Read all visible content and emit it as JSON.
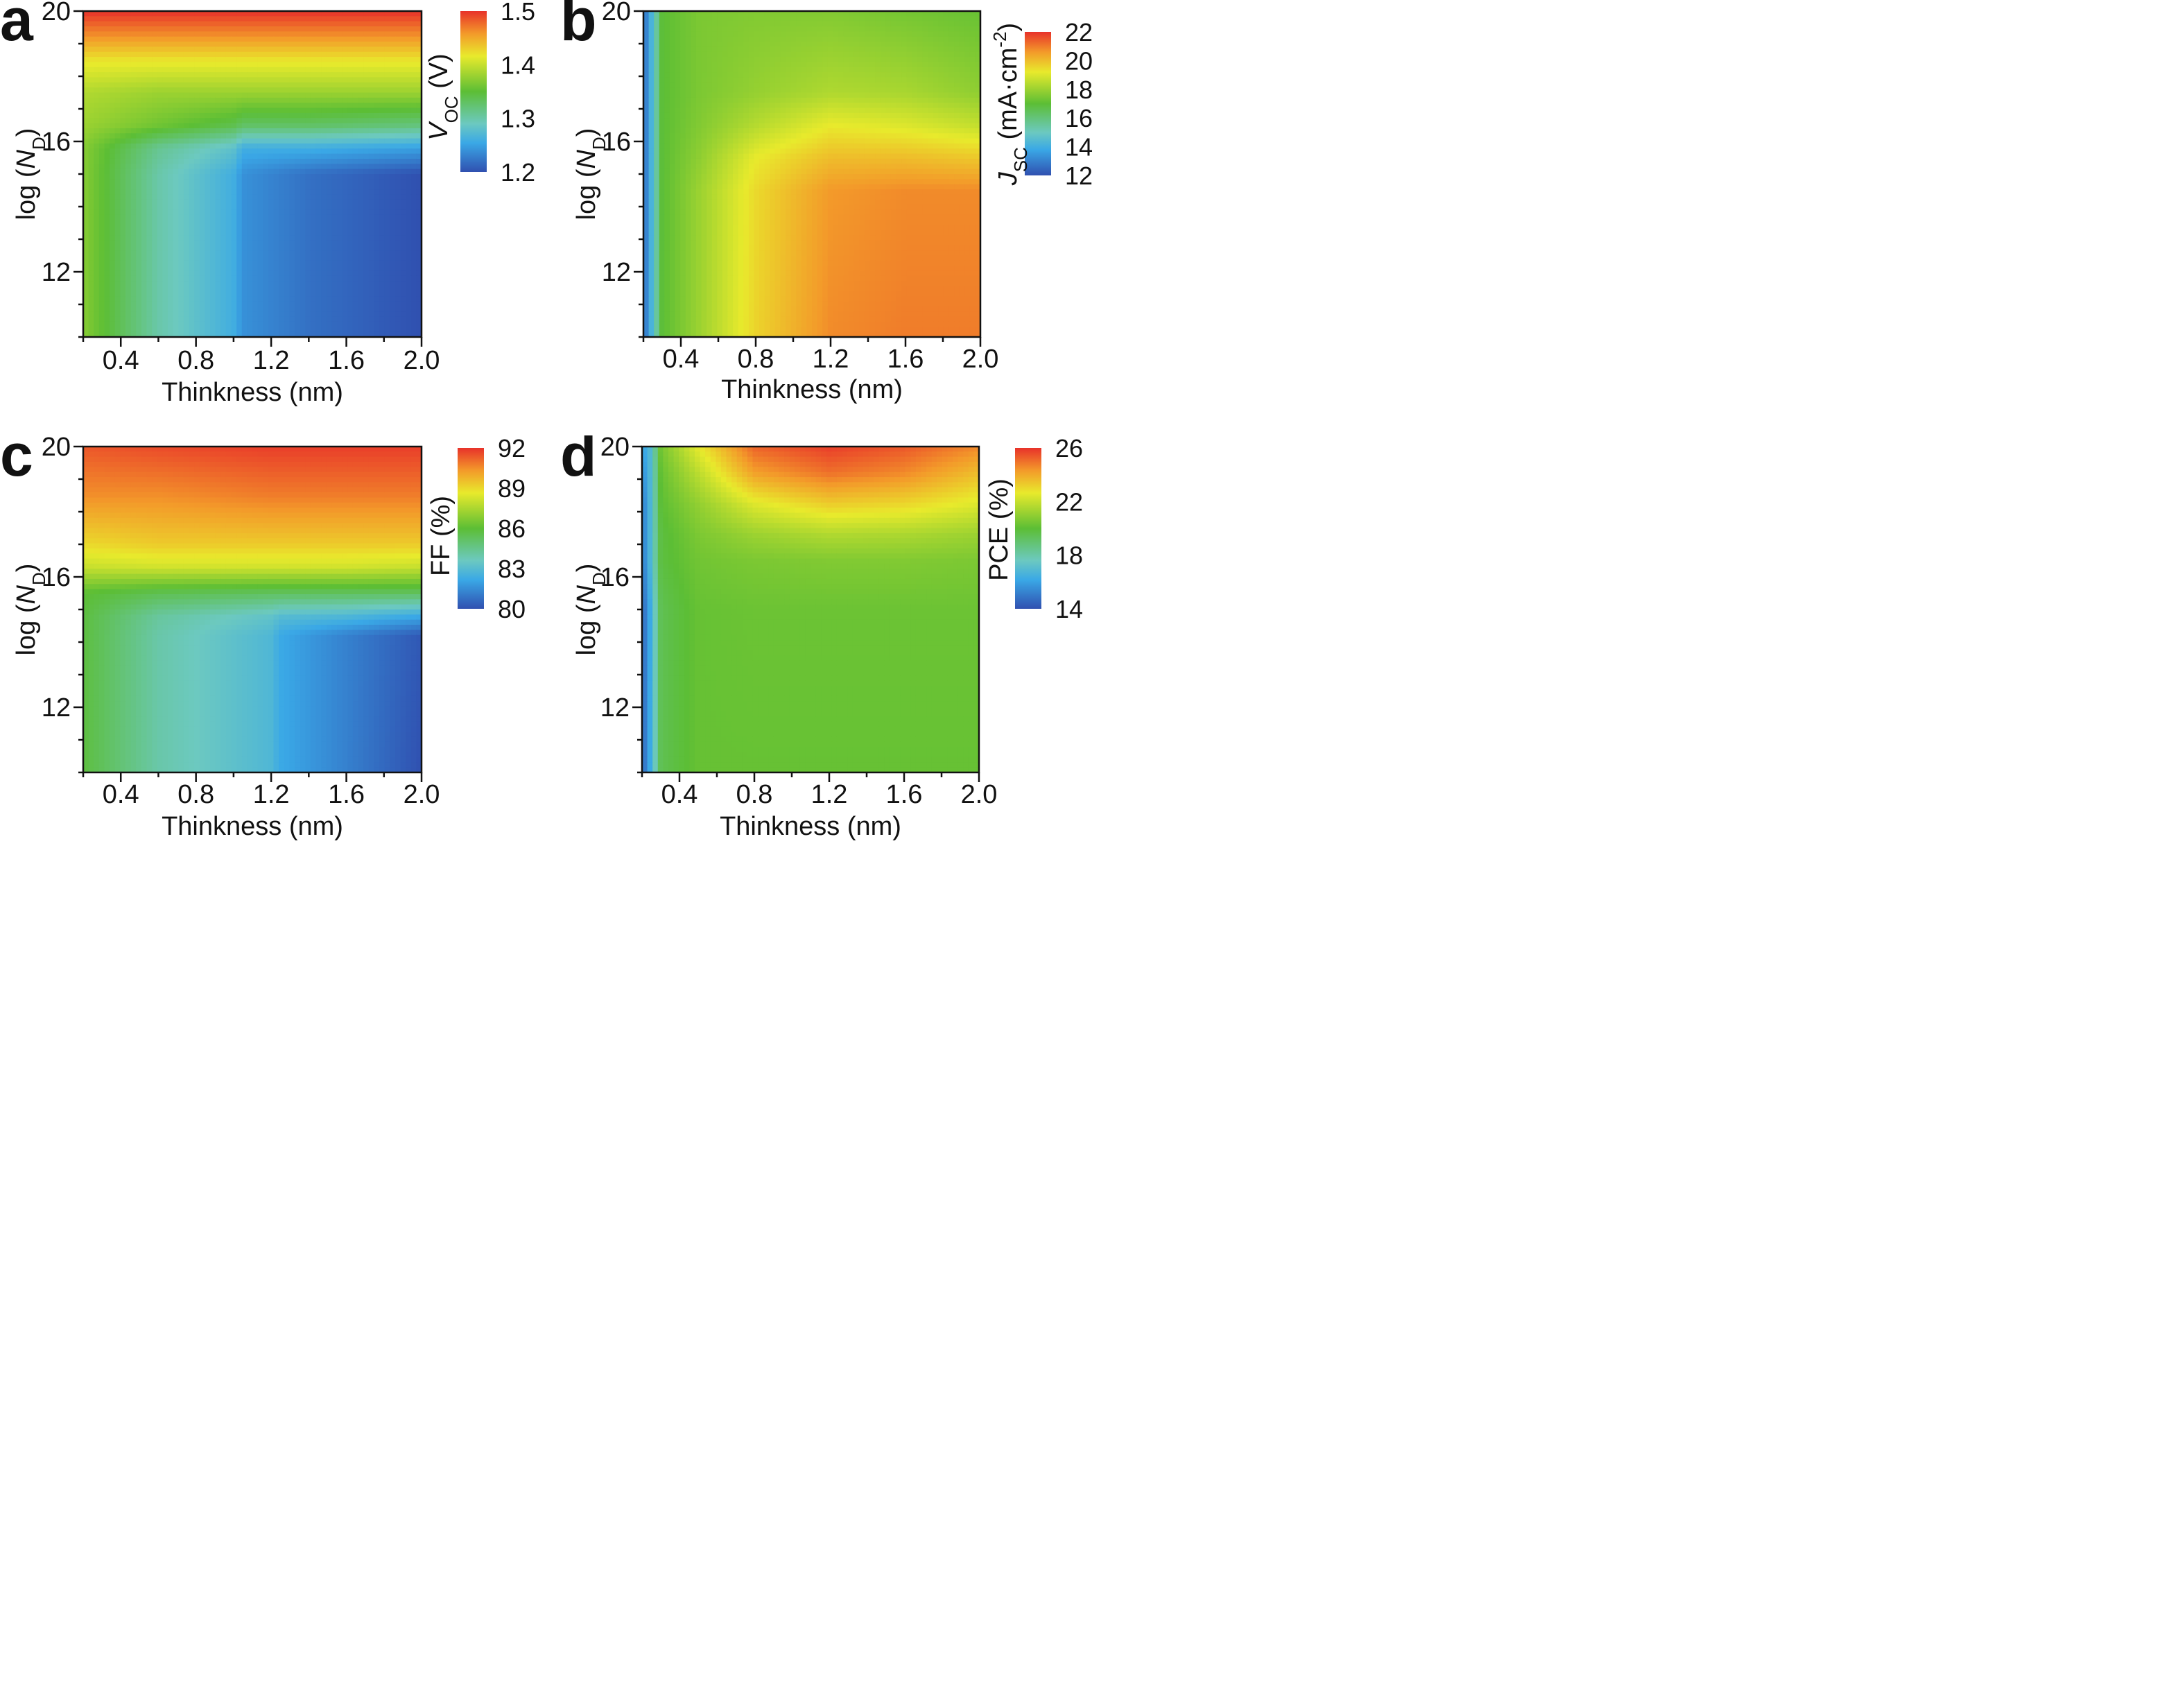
{
  "figure": {
    "panel_letters": [
      "a",
      "b",
      "c",
      "d"
    ]
  },
  "chart_data": [
    {
      "panel": "a",
      "type": "heatmap",
      "xlabel": "Thinkness (nm)",
      "ylabel": {
        "prefix": "log (",
        "italic": "N",
        "sub": "D",
        "suffix": ")"
      },
      "xlim": [
        0.2,
        2.0
      ],
      "ylim": [
        10,
        20
      ],
      "xticks": [
        0.4,
        0.8,
        1.2,
        1.6,
        2.0
      ],
      "xtick_labels": [
        "0.4",
        "0.8",
        "1.2",
        "1.6",
        "2.0"
      ],
      "yticks": [
        12,
        16,
        20
      ],
      "ytick_labels": [
        "12",
        "16",
        "20"
      ],
      "colorbar": {
        "label": {
          "italic": "V",
          "sub": "OC",
          "suffix": " (V)"
        },
        "range": [
          1.2,
          1.5
        ],
        "ticks": [
          1.2,
          1.3,
          1.4,
          1.5
        ],
        "tick_labels": [
          "1.2",
          "1.3",
          "1.4",
          "1.5"
        ]
      },
      "grid_x": [
        0.2,
        0.6,
        1.0,
        1.05,
        1.4,
        2.0
      ],
      "grid_y": [
        10,
        15.0,
        15.8,
        16.5,
        17.5,
        18.5,
        19.2,
        20
      ],
      "z": [
        [
          1.37,
          1.3,
          1.26,
          1.24,
          1.22,
          1.2
        ],
        [
          1.37,
          1.3,
          1.26,
          1.24,
          1.22,
          1.2
        ],
        [
          1.37,
          1.31,
          1.28,
          1.26,
          1.26,
          1.25
        ],
        [
          1.38,
          1.36,
          1.34,
          1.33,
          1.33,
          1.32
        ],
        [
          1.39,
          1.38,
          1.38,
          1.38,
          1.38,
          1.38
        ],
        [
          1.42,
          1.42,
          1.42,
          1.42,
          1.42,
          1.42
        ],
        [
          1.46,
          1.46,
          1.46,
          1.46,
          1.46,
          1.46
        ],
        [
          1.5,
          1.5,
          1.5,
          1.5,
          1.5,
          1.5
        ]
      ]
    },
    {
      "panel": "b",
      "type": "heatmap",
      "xlabel": "Thinkness (nm)",
      "ylabel": {
        "prefix": "log (",
        "italic": "N",
        "sub": "D",
        "suffix": ")"
      },
      "xlim": [
        0.2,
        2.0
      ],
      "ylim": [
        10,
        20
      ],
      "xticks": [
        0.4,
        0.8,
        1.2,
        1.6,
        2.0
      ],
      "xtick_labels": [
        "0.4",
        "0.8",
        "1.2",
        "1.6",
        "2.0"
      ],
      "yticks": [
        12,
        16,
        20
      ],
      "ytick_labels": [
        "12",
        "16",
        "20"
      ],
      "colorbar": {
        "label": {
          "italic": "J",
          "sub": "SC",
          "suffix": " (mA·cm",
          "sup": "-2",
          "end": ")"
        },
        "range": [
          12,
          22
        ],
        "ticks": [
          12,
          14,
          16,
          18,
          20,
          22
        ],
        "tick_labels": [
          "12",
          "14",
          "16",
          "18",
          "20",
          "22"
        ]
      },
      "grid_x": [
        0.2,
        0.25,
        0.3,
        0.5,
        0.8,
        1.2,
        1.6,
        2.0
      ],
      "grid_y": [
        10,
        14.5,
        15.5,
        16.5,
        17.5,
        20
      ],
      "z": [
        [
          12.5,
          14.5,
          17.0,
          18.0,
          19.6,
          20.8,
          21.0,
          21.0
        ],
        [
          12.5,
          14.5,
          17.0,
          18.0,
          19.5,
          20.6,
          20.8,
          20.8
        ],
        [
          12.5,
          14.5,
          17.0,
          17.8,
          19.2,
          20.0,
          20.0,
          19.8
        ],
        [
          12.5,
          14.5,
          17.0,
          17.6,
          18.4,
          19.2,
          19.0,
          18.6
        ],
        [
          12.5,
          14.5,
          17.0,
          17.5,
          17.9,
          18.3,
          18.2,
          17.8
        ],
        [
          12.5,
          14.5,
          17.0,
          17.5,
          17.6,
          17.6,
          17.4,
          17.2
        ]
      ]
    },
    {
      "panel": "c",
      "type": "heatmap",
      "xlabel": "Thinkness (nm)",
      "ylabel": {
        "prefix": "log (",
        "italic": "N",
        "sub": "D",
        "suffix": ")"
      },
      "xlim": [
        0.2,
        2.0
      ],
      "ylim": [
        10,
        20
      ],
      "xticks": [
        0.4,
        0.8,
        1.2,
        1.6,
        2.0
      ],
      "xtick_labels": [
        "0.4",
        "0.8",
        "1.2",
        "1.6",
        "2.0"
      ],
      "yticks": [
        12,
        16,
        20
      ],
      "ytick_labels": [
        "12",
        "16",
        "20"
      ],
      "colorbar": {
        "label": {
          "text": "FF (%)"
        },
        "range": [
          80,
          92
        ],
        "ticks": [
          80,
          83,
          86,
          89,
          92
        ],
        "tick_labels": [
          "80",
          "83",
          "86",
          "89",
          "92"
        ]
      },
      "grid_x": [
        0.2,
        0.6,
        1.2,
        1.25,
        1.6,
        2.0
      ],
      "grid_y": [
        10,
        14.2,
        14.8,
        15.5,
        16.3,
        17.0,
        18.5,
        20
      ],
      "z": [
        [
          85.8,
          84.0,
          82.8,
          82.2,
          81.2,
          80.0
        ],
        [
          85.8,
          84.0,
          82.8,
          82.2,
          81.2,
          80.2
        ],
        [
          85.8,
          84.2,
          83.3,
          83.0,
          82.8,
          82.2
        ],
        [
          86.0,
          85.5,
          85.3,
          85.3,
          85.3,
          85.3
        ],
        [
          88.0,
          88.2,
          88.2,
          88.2,
          88.2,
          88.0
        ],
        [
          89.0,
          89.3,
          89.3,
          89.3,
          89.3,
          89.3
        ],
        [
          90.5,
          90.5,
          90.8,
          90.8,
          90.8,
          90.8
        ],
        [
          91.4,
          91.6,
          91.8,
          91.8,
          91.8,
          91.8
        ]
      ]
    },
    {
      "panel": "d",
      "type": "heatmap",
      "xlabel": "Thinkness (nm)",
      "ylabel": {
        "prefix": "log (",
        "italic": "N",
        "sub": "D",
        "suffix": ")"
      },
      "xlim": [
        0.2,
        2.0
      ],
      "ylim": [
        10,
        20
      ],
      "xticks": [
        0.4,
        0.8,
        1.2,
        1.6,
        2.0
      ],
      "xtick_labels": [
        "0.4",
        "0.8",
        "1.2",
        "1.6",
        "2.0"
      ],
      "yticks": [
        12,
        16,
        20
      ],
      "ytick_labels": [
        "12",
        "16",
        "20"
      ],
      "colorbar": {
        "label": {
          "text": "PCE (%)"
        },
        "range": [
          14,
          26
        ],
        "ticks": [
          14,
          18,
          22,
          26
        ],
        "tick_labels": [
          "14",
          "18",
          "22",
          "26"
        ]
      },
      "grid_x": [
        0.2,
        0.25,
        0.3,
        0.5,
        0.8,
        1.2,
        1.6,
        2.0
      ],
      "grid_y": [
        10,
        15.0,
        16.5,
        17.3,
        18.2,
        19.2,
        20
      ],
      "z": [
        [
          14.5,
          16.5,
          19.5,
          20.2,
          20.2,
          20.2,
          20.2,
          20.2
        ],
        [
          14.5,
          16.5,
          19.5,
          20.2,
          20.3,
          20.3,
          20.3,
          20.3
        ],
        [
          15.0,
          17.0,
          19.8,
          20.4,
          20.6,
          20.7,
          20.7,
          20.6
        ],
        [
          15.0,
          17.0,
          19.8,
          20.6,
          21.2,
          21.6,
          21.5,
          21.2
        ],
        [
          15.0,
          17.0,
          20.0,
          21.0,
          22.4,
          23.2,
          23.0,
          22.4
        ],
        [
          15.5,
          17.0,
          20.2,
          21.8,
          24.2,
          25.0,
          24.6,
          23.6
        ],
        [
          16.0,
          17.0,
          20.5,
          22.6,
          25.2,
          25.8,
          25.4,
          24.6
        ]
      ]
    }
  ]
}
